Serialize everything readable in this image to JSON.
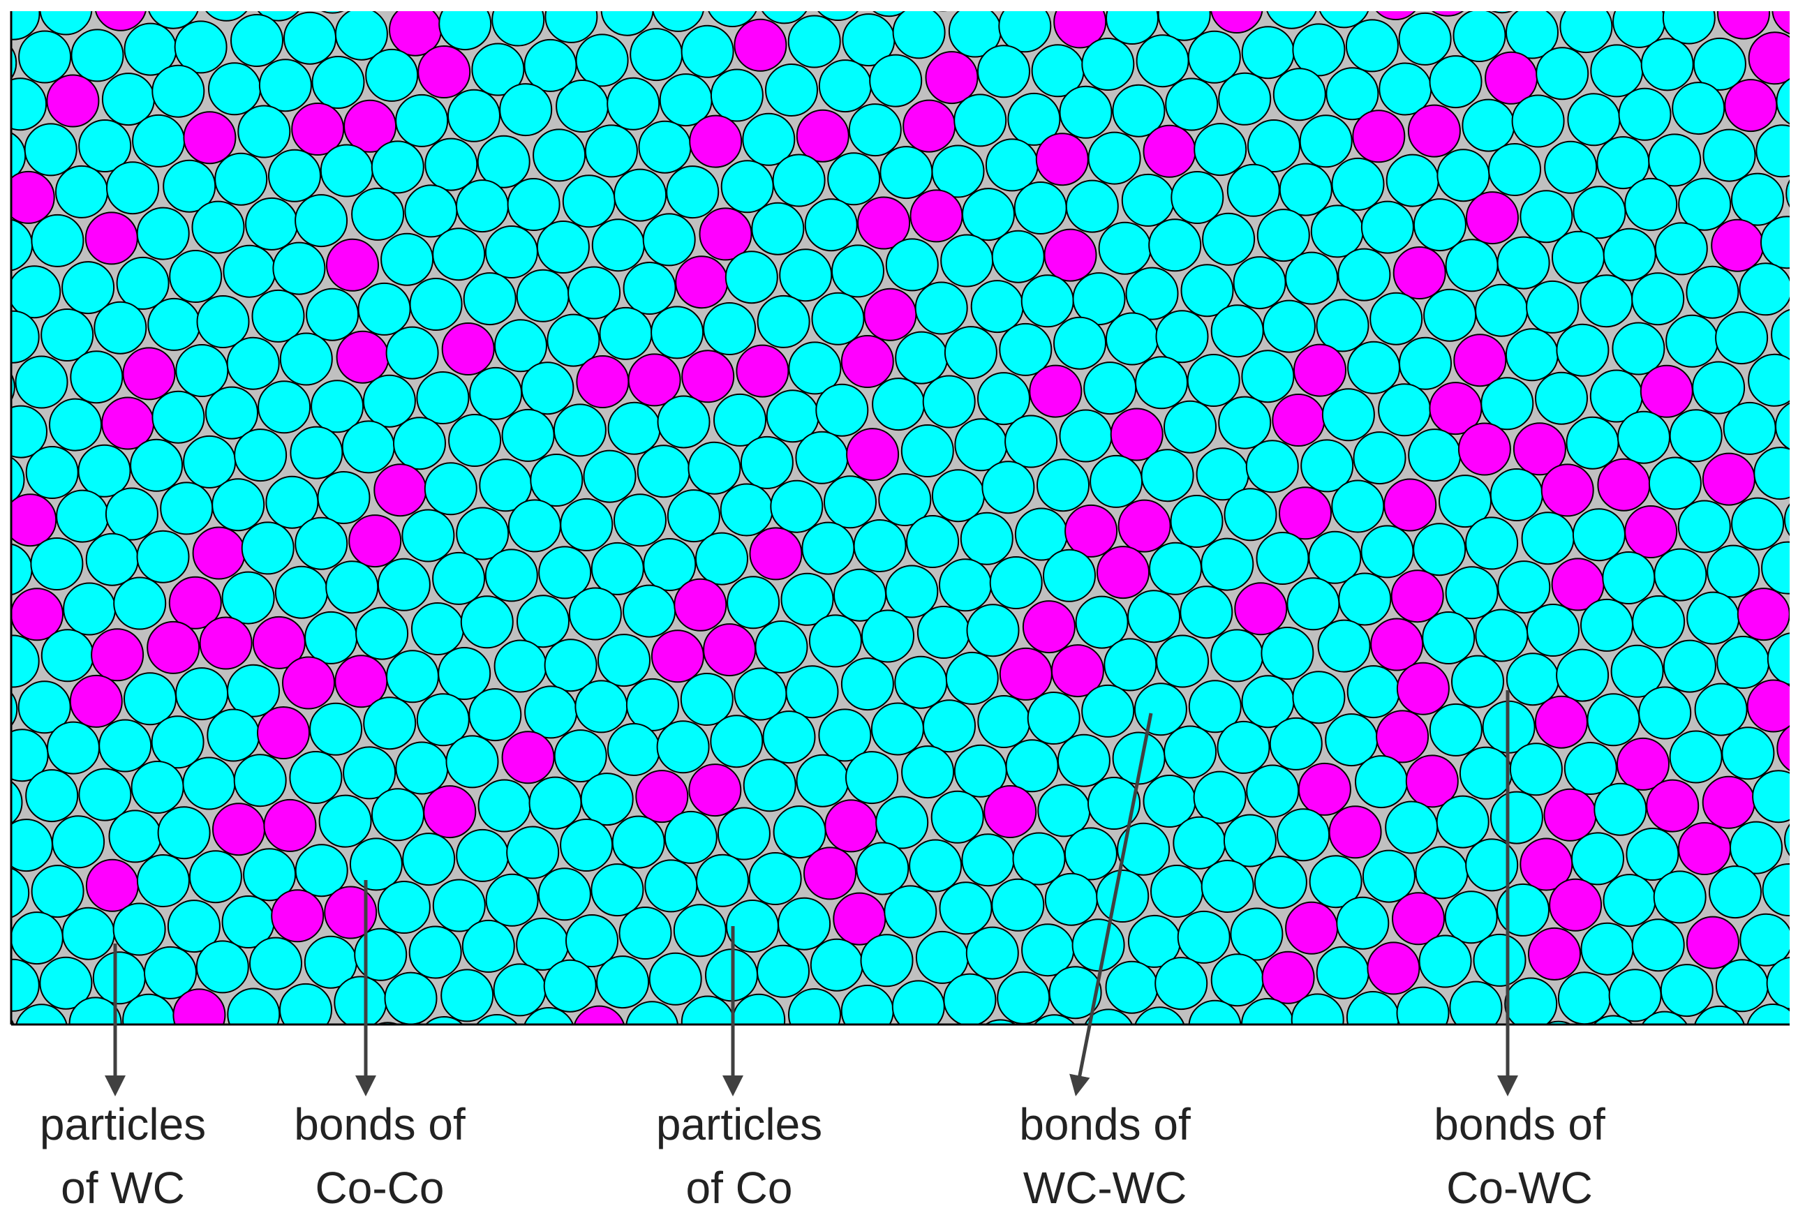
{
  "labels": [
    [
      "particles",
      "of WC"
    ],
    [
      "bonds of",
      "Co-Co"
    ],
    [
      "particles",
      "of Co"
    ],
    [
      "bonds of",
      "WC-WC"
    ],
    [
      "bonds of",
      "Co-WC"
    ]
  ]
}
